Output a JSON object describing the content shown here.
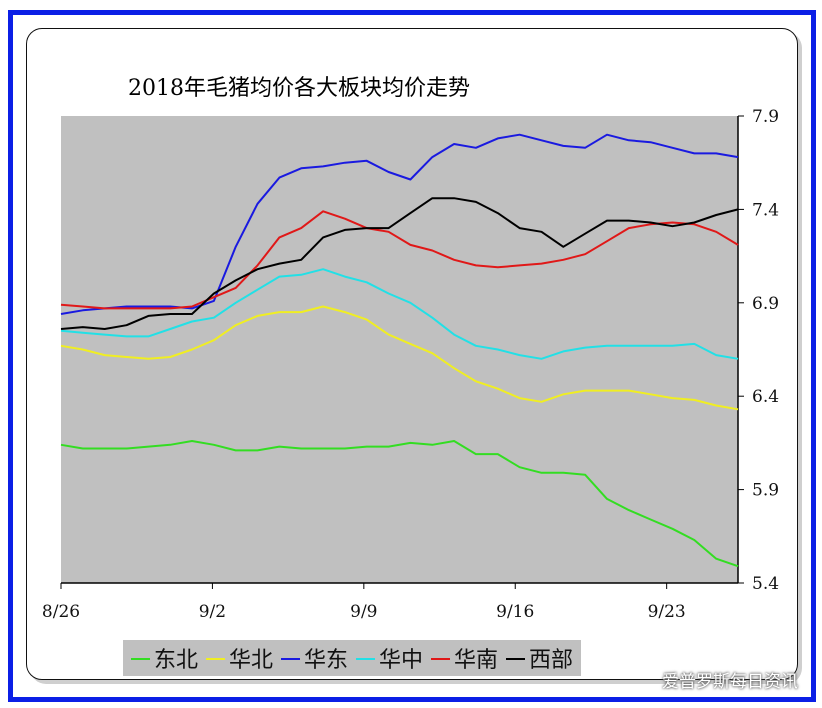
{
  "chart_data": {
    "type": "line",
    "title": "2018年毛猪均价各大板块均价走势",
    "xlabel": "",
    "ylabel": "",
    "x_ticks": [
      "8/26",
      "9/2",
      "9/9",
      "9/16",
      "9/23"
    ],
    "y_ticks": [
      "7.9",
      "7.4",
      "6.9",
      "6.4",
      "5.9",
      "5.4"
    ],
    "ylim": [
      5.4,
      7.9
    ],
    "xlim": [
      0,
      31
    ],
    "y_axis_side": "right",
    "grid": false,
    "legend_position": "bottom",
    "plot_background": "#c0c0c0",
    "series": [
      {
        "name": "东北",
        "color": "#33dd22",
        "x": [
          0,
          1,
          2,
          3,
          4,
          5,
          6,
          7,
          8,
          9,
          10,
          11,
          12,
          13,
          14,
          15,
          16,
          17,
          18,
          19,
          20,
          21,
          22,
          23,
          24,
          25,
          26,
          27,
          28,
          29,
          30,
          31
        ],
        "values": [
          6.14,
          6.12,
          6.12,
          6.12,
          6.13,
          6.14,
          6.16,
          6.14,
          6.11,
          6.11,
          6.13,
          6.12,
          6.12,
          6.12,
          6.13,
          6.13,
          6.15,
          6.14,
          6.16,
          6.09,
          6.09,
          6.02,
          5.99,
          5.99,
          5.98,
          5.85,
          5.79,
          5.74,
          5.69,
          5.63,
          5.53,
          5.49
        ]
      },
      {
        "name": "华北",
        "color": "#f0ee22",
        "x": [
          0,
          1,
          2,
          3,
          4,
          5,
          6,
          7,
          8,
          9,
          10,
          11,
          12,
          13,
          14,
          15,
          16,
          17,
          18,
          19,
          20,
          21,
          22,
          23,
          24,
          25,
          26,
          27,
          28,
          29,
          30,
          31
        ],
        "values": [
          6.67,
          6.65,
          6.62,
          6.61,
          6.6,
          6.61,
          6.65,
          6.7,
          6.78,
          6.83,
          6.85,
          6.85,
          6.88,
          6.85,
          6.81,
          6.73,
          6.68,
          6.63,
          6.55,
          6.48,
          6.44,
          6.39,
          6.37,
          6.41,
          6.43,
          6.43,
          6.43,
          6.41,
          6.39,
          6.38,
          6.35,
          6.33
        ]
      },
      {
        "name": "华东",
        "color": "#1a1ae0",
        "x": [
          0,
          1,
          2,
          3,
          4,
          5,
          6,
          7,
          8,
          9,
          10,
          11,
          12,
          13,
          14,
          15,
          16,
          17,
          18,
          19,
          20,
          21,
          22,
          23,
          24,
          25,
          26,
          27,
          28,
          29,
          30,
          31
        ],
        "values": [
          6.84,
          6.86,
          6.87,
          6.88,
          6.88,
          6.88,
          6.87,
          6.91,
          7.2,
          7.43,
          7.57,
          7.62,
          7.63,
          7.65,
          7.66,
          7.6,
          7.56,
          7.68,
          7.75,
          7.73,
          7.78,
          7.8,
          7.77,
          7.74,
          7.73,
          7.8,
          7.77,
          7.76,
          7.73,
          7.7,
          7.7,
          7.68
        ]
      },
      {
        "name": "华中",
        "color": "#22e0e6",
        "x": [
          0,
          1,
          2,
          3,
          4,
          5,
          6,
          7,
          8,
          9,
          10,
          11,
          12,
          13,
          14,
          15,
          16,
          17,
          18,
          19,
          20,
          21,
          22,
          23,
          24,
          25,
          26,
          27,
          28,
          29,
          30,
          31
        ],
        "values": [
          6.75,
          6.74,
          6.73,
          6.72,
          6.72,
          6.76,
          6.8,
          6.82,
          6.9,
          6.97,
          7.04,
          7.05,
          7.08,
          7.04,
          7.01,
          6.95,
          6.9,
          6.82,
          6.73,
          6.67,
          6.65,
          6.62,
          6.6,
          6.64,
          6.66,
          6.67,
          6.67,
          6.67,
          6.67,
          6.68,
          6.62,
          6.6
        ]
      },
      {
        "name": "华南",
        "color": "#e01818",
        "x": [
          0,
          1,
          2,
          3,
          4,
          5,
          6,
          7,
          8,
          9,
          10,
          11,
          12,
          13,
          14,
          15,
          16,
          17,
          18,
          19,
          20,
          21,
          22,
          23,
          24,
          25,
          26,
          27,
          28,
          29,
          30,
          31
        ],
        "values": [
          6.89,
          6.88,
          6.87,
          6.87,
          6.87,
          6.87,
          6.88,
          6.93,
          6.98,
          7.1,
          7.25,
          7.3,
          7.39,
          7.35,
          7.3,
          7.28,
          7.21,
          7.18,
          7.13,
          7.1,
          7.09,
          7.1,
          7.11,
          7.13,
          7.16,
          7.23,
          7.3,
          7.32,
          7.33,
          7.32,
          7.28,
          7.21
        ]
      },
      {
        "name": "西部",
        "color": "#000000",
        "x": [
          0,
          1,
          2,
          3,
          4,
          5,
          6,
          7,
          8,
          9,
          10,
          11,
          12,
          13,
          14,
          15,
          16,
          17,
          18,
          19,
          20,
          21,
          22,
          23,
          24,
          25,
          26,
          27,
          28,
          29,
          30,
          31
        ],
        "values": [
          6.76,
          6.77,
          6.76,
          6.78,
          6.83,
          6.84,
          6.84,
          6.95,
          7.02,
          7.08,
          7.11,
          7.13,
          7.25,
          7.29,
          7.3,
          7.3,
          7.38,
          7.46,
          7.46,
          7.44,
          7.38,
          7.3,
          7.28,
          7.2,
          7.27,
          7.34,
          7.34,
          7.33,
          7.31,
          7.33,
          7.37,
          7.4
        ]
      }
    ]
  },
  "watermark": {
    "text": "爱普罗斯每日资讯"
  }
}
